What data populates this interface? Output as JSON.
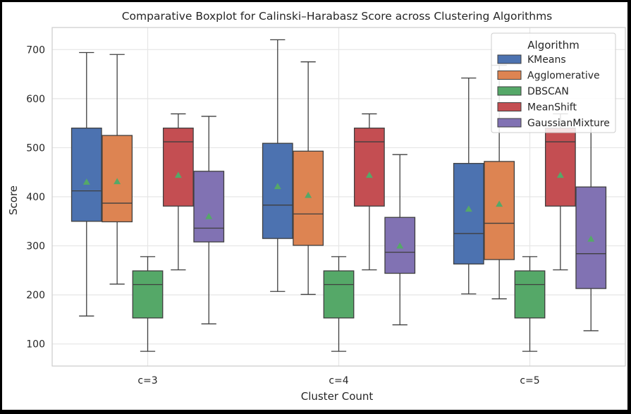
{
  "chart_data": {
    "type": "boxplot",
    "title": "Comparative Boxplot for Calinski–Harabasz Score across Clustering Algorithms",
    "xlabel": "Cluster Count",
    "ylabel": "Score",
    "categories": [
      "c=3",
      "c=4",
      "c=5"
    ],
    "ylim": [
      55,
      745
    ],
    "yticks": [
      100,
      200,
      300,
      400,
      500,
      600,
      700
    ],
    "grid": true,
    "legend": {
      "title": "Algorithm",
      "placement": "top-right"
    },
    "series": [
      {
        "name": "KMeans",
        "color": "#4c72b0",
        "boxes": [
          {
            "whisker_low": 157,
            "q1": 350,
            "median": 412,
            "q3": 540,
            "whisker_high": 694,
            "mean": 430
          },
          {
            "whisker_low": 207,
            "q1": 315,
            "median": 383,
            "q3": 509,
            "whisker_high": 720,
            "mean": 421
          },
          {
            "whisker_low": 202,
            "q1": 263,
            "median": 325,
            "q3": 468,
            "whisker_high": 642,
            "mean": 375
          }
        ]
      },
      {
        "name": "Agglomerative",
        "color": "#dd8452",
        "boxes": [
          {
            "whisker_low": 222,
            "q1": 349,
            "median": 387,
            "q3": 525,
            "whisker_high": 690,
            "mean": 431
          },
          {
            "whisker_low": 201,
            "q1": 301,
            "median": 365,
            "q3": 493,
            "whisker_high": 675,
            "mean": 403
          },
          {
            "whisker_low": 192,
            "q1": 272,
            "median": 346,
            "q3": 472,
            "whisker_high": 668,
            "mean": 385
          }
        ]
      },
      {
        "name": "DBSCAN",
        "color": "#55a868",
        "boxes": [
          {
            "whisker_low": 85,
            "q1": 153,
            "median": 221,
            "q3": 249,
            "whisker_high": 278,
            "mean": 192
          },
          {
            "whisker_low": 85,
            "q1": 153,
            "median": 221,
            "q3": 249,
            "whisker_high": 278,
            "mean": 192
          },
          {
            "whisker_low": 85,
            "q1": 153,
            "median": 221,
            "q3": 249,
            "whisker_high": 278,
            "mean": 192
          }
        ]
      },
      {
        "name": "MeanShift",
        "color": "#c44e52",
        "boxes": [
          {
            "whisker_low": 251,
            "q1": 381,
            "median": 512,
            "q3": 540,
            "whisker_high": 569,
            "mean": 444
          },
          {
            "whisker_low": 251,
            "q1": 381,
            "median": 512,
            "q3": 540,
            "whisker_high": 569,
            "mean": 444
          },
          {
            "whisker_low": 251,
            "q1": 381,
            "median": 512,
            "q3": 540,
            "whisker_high": 569,
            "mean": 444
          }
        ]
      },
      {
        "name": "GaussianMixture",
        "color": "#8172b3",
        "boxes": [
          {
            "whisker_low": 141,
            "q1": 308,
            "median": 336,
            "q3": 452,
            "whisker_high": 564,
            "mean": 360
          },
          {
            "whisker_low": 139,
            "q1": 244,
            "median": 287,
            "q3": 358,
            "whisker_high": 486,
            "mean": 300
          },
          {
            "whisker_low": 127,
            "q1": 213,
            "median": 284,
            "q3": 420,
            "whisker_high": 555,
            "mean": 314
          }
        ]
      }
    ]
  }
}
